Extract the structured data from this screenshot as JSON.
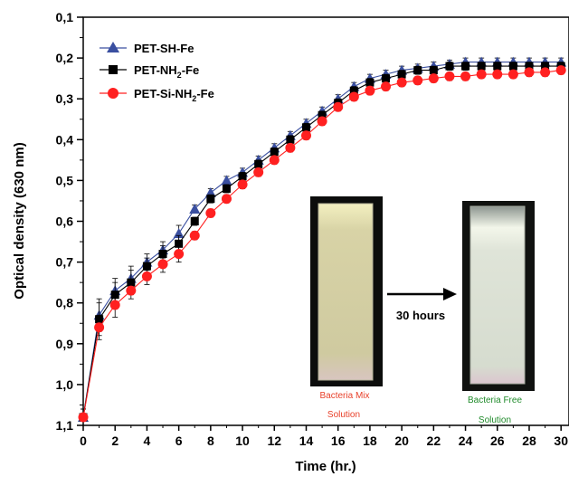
{
  "chart_data": {
    "type": "line",
    "xlabel": "Time (hr.)",
    "ylabel": "Optical density (630 nm)",
    "xlim": [
      0,
      30.5
    ],
    "ylim": [
      0.1,
      1.1
    ],
    "y_inverted": true,
    "x_ticks": [
      0,
      2,
      4,
      6,
      8,
      10,
      12,
      14,
      16,
      18,
      20,
      22,
      24,
      26,
      28,
      30
    ],
    "y_ticks": [
      0.1,
      0.2,
      0.3,
      0.4,
      0.5,
      0.6,
      0.7,
      0.8,
      0.9,
      1.0,
      1.1
    ],
    "y_tick_labels": [
      "0,1",
      "0,2",
      "0,3",
      "0,4",
      "0,5",
      "0,6",
      "0,7",
      "0,8",
      "0,9",
      "1,0",
      "1,1"
    ],
    "x": [
      0,
      1,
      2,
      3,
      4,
      5,
      6,
      7,
      8,
      9,
      10,
      11,
      12,
      13,
      14,
      15,
      16,
      17,
      18,
      19,
      20,
      21,
      22,
      23,
      24,
      25,
      26,
      27,
      28,
      29,
      30
    ],
    "legend_position": "top-left",
    "series": [
      {
        "name": "PET-SH-Fe",
        "marker": "triangle",
        "color": "#3a4fa0",
        "values": [
          1.08,
          0.83,
          0.77,
          0.74,
          0.7,
          0.67,
          0.63,
          0.57,
          0.53,
          0.5,
          0.48,
          0.45,
          0.42,
          0.39,
          0.36,
          0.33,
          0.3,
          0.27,
          0.25,
          0.24,
          0.23,
          0.225,
          0.22,
          0.215,
          0.21,
          0.21,
          0.21,
          0.21,
          0.21,
          0.21,
          0.21
        ],
        "error": [
          0.02,
          0.04,
          0.03,
          0.03,
          0.02,
          0.02,
          0.02,
          0.01,
          0.01,
          0.01,
          0.01,
          0.01,
          0.01,
          0.01,
          0.01,
          0.01,
          0.01,
          0.01,
          0.01,
          0.01,
          0.01,
          0.01,
          0.01,
          0.01,
          0.01,
          0.01,
          0.01,
          0.01,
          0.01,
          0.01,
          0.01
        ]
      },
      {
        "name": "PET-NH2-Fe",
        "legend_main": "PET-NH",
        "legend_sub": "2",
        "legend_tail": "-Fe",
        "marker": "square",
        "color": "#000000",
        "values": [
          1.08,
          0.84,
          0.78,
          0.75,
          0.71,
          0.68,
          0.655,
          0.6,
          0.545,
          0.52,
          0.49,
          0.46,
          0.43,
          0.4,
          0.37,
          0.34,
          0.31,
          0.28,
          0.26,
          0.25,
          0.24,
          0.23,
          0.23,
          0.22,
          0.22,
          0.22,
          0.22,
          0.22,
          0.22,
          0.22,
          0.22
        ],
        "error": [
          0.02,
          0.04,
          0.03,
          0.03,
          0.02,
          0.02,
          0.02,
          0.01,
          0.01,
          0.01,
          0.01,
          0.01,
          0.01,
          0.01,
          0.01,
          0.01,
          0.01,
          0.01,
          0.01,
          0.01,
          0.01,
          0.01,
          0.01,
          0.01,
          0.01,
          0.01,
          0.01,
          0.01,
          0.01,
          0.01,
          0.01
        ]
      },
      {
        "name": "PET-Si-NH2-Fe",
        "legend_main": "PET-Si-NH",
        "legend_sub": "2",
        "legend_tail": "-Fe",
        "marker": "circle",
        "color": "#ff2020",
        "values": [
          1.08,
          0.86,
          0.805,
          0.77,
          0.735,
          0.705,
          0.68,
          0.635,
          0.58,
          0.545,
          0.51,
          0.48,
          0.45,
          0.42,
          0.39,
          0.355,
          0.32,
          0.295,
          0.28,
          0.27,
          0.26,
          0.255,
          0.25,
          0.245,
          0.245,
          0.24,
          0.24,
          0.24,
          0.235,
          0.235,
          0.23
        ],
        "error": [
          0.02,
          0.03,
          0.03,
          0.02,
          0.02,
          0.02,
          0.02,
          0.01,
          0.01,
          0.01,
          0.01,
          0.01,
          0.01,
          0.01,
          0.01,
          0.01,
          0.01,
          0.01,
          0.01,
          0.01,
          0.01,
          0.01,
          0.01,
          0.01,
          0.01,
          0.01,
          0.01,
          0.01,
          0.01,
          0.01,
          0.01
        ]
      }
    ],
    "inset": {
      "before_caption_line1": "Bacteria Mix",
      "before_caption_line2": "Solution",
      "before_color": "#e8402a",
      "arrow_label": "30 hours",
      "after_caption_line1": "Bacteria Free",
      "after_caption_line2": "Solution",
      "after_color": "#1f8a2a"
    }
  }
}
